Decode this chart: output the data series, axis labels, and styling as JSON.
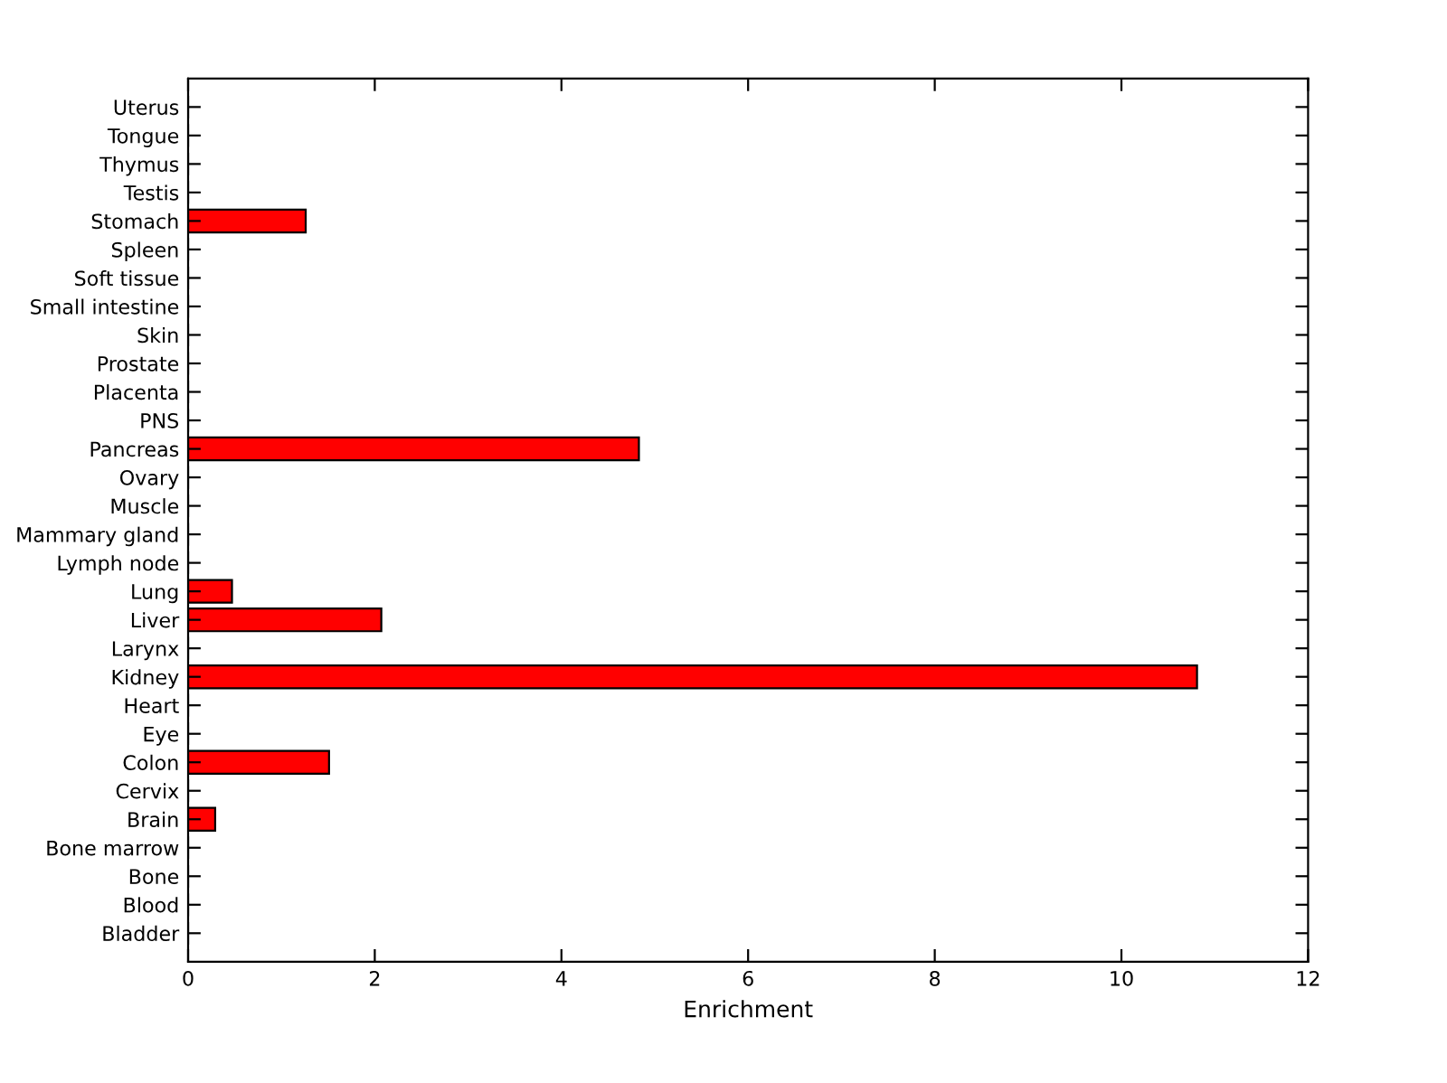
{
  "chart_data": {
    "type": "bar",
    "orientation": "horizontal",
    "xlabel": "Enrichment",
    "categories": [
      "Uterus",
      "Tongue",
      "Thymus",
      "Testis",
      "Stomach",
      "Spleen",
      "Soft tissue",
      "Small intestine",
      "Skin",
      "Prostate",
      "Placenta",
      "PNS",
      "Pancreas",
      "Ovary",
      "Muscle",
      "Mammary gland",
      "Lymph node",
      "Lung",
      "Liver",
      "Larynx",
      "Kidney",
      "Heart",
      "Eye",
      "Colon",
      "Cervix",
      "Brain",
      "Bone marrow",
      "Bone",
      "Blood",
      "Bladder"
    ],
    "values": [
      0,
      0,
      0,
      0,
      1.26,
      0,
      0,
      0,
      0,
      0,
      0,
      0,
      4.83,
      0,
      0,
      0,
      0,
      0.47,
      2.07,
      0,
      10.81,
      0,
      0,
      1.51,
      0,
      0.29,
      0,
      0,
      0,
      0
    ],
    "color": "#ff0000",
    "xlim": [
      0,
      12
    ],
    "xticks": [
      0,
      2,
      4,
      6,
      8,
      10,
      12
    ],
    "grid": false
  }
}
